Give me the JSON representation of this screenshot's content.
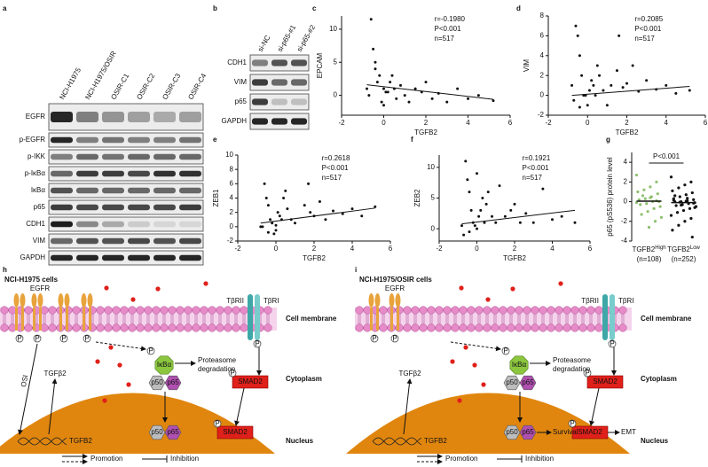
{
  "panels": [
    "a",
    "b",
    "c",
    "d",
    "e",
    "f",
    "g",
    "h",
    "i"
  ],
  "blots": [
    {
      "lanes": [
        "NCI-H1975",
        "NCI-H1975/OSIR",
        "OSIR-C1",
        "OSIR-C2",
        "OSIR-C3",
        "OSIR-C4"
      ],
      "rows": [
        "EGFR",
        "p-EGFR",
        "p-IKK",
        "p-IκBα",
        "IκBα",
        "p65",
        "CDH1",
        "VIM",
        "GAPDH"
      ],
      "intensity": [
        [
          0.9,
          0.5,
          0.4,
          0.35,
          0.3,
          0.35
        ],
        [
          0.9,
          0.5,
          0.55,
          0.5,
          0.5,
          0.55
        ],
        [
          0.5,
          0.6,
          0.55,
          0.6,
          0.6,
          0.6
        ],
        [
          0.6,
          0.8,
          0.8,
          0.75,
          0.85,
          0.85
        ],
        [
          0.7,
          0.6,
          0.6,
          0.6,
          0.6,
          0.6
        ],
        [
          0.8,
          0.75,
          0.75,
          0.75,
          0.75,
          0.8
        ],
        [
          0.95,
          0.45,
          0.3,
          0.15,
          0.1,
          0.1
        ],
        [
          0.6,
          0.7,
          0.7,
          0.75,
          0.7,
          0.75
        ],
        [
          0.9,
          0.9,
          0.9,
          0.9,
          0.9,
          0.9
        ]
      ]
    },
    {
      "lanes": [
        "si-NC",
        "si-p65-#1",
        "si-p65-#2"
      ],
      "rows": [
        "CDH1",
        "VIM",
        "p65",
        "GAPDH"
      ],
      "intensity": [
        [
          0.5,
          0.7,
          0.7
        ],
        [
          0.8,
          0.6,
          0.6
        ],
        [
          0.8,
          0.2,
          0.2
        ],
        [
          0.9,
          0.9,
          0.9
        ]
      ]
    }
  ],
  "chart_data": [
    {
      "type": "scatter",
      "xlabel": "TGFB2",
      "ylabel": "EPCAM",
      "stats": [
        "r=-0.1980",
        "P<0.001",
        "n=517"
      ],
      "xlim": [
        -2,
        6
      ],
      "xticks": [
        -2,
        0,
        2,
        4,
        6
      ],
      "ylim": [
        -3,
        12
      ],
      "yticks": [
        0,
        5,
        10
      ],
      "x": [
        -0.6,
        -0.5,
        -0.4,
        -0.3,
        -0.2,
        0,
        0.1,
        0.3,
        0.5,
        -0.7,
        -0.1,
        0.2,
        0.6,
        0.8,
        1.0,
        1.2,
        1.5,
        1.8,
        2.0,
        2.3,
        2.6,
        3.0,
        3.5,
        4.0,
        4.5,
        5.2,
        -0.4,
        0.0,
        0.4,
        -0.8
      ],
      "y": [
        11.5,
        7,
        4,
        2,
        3,
        1,
        0.5,
        2,
        1,
        0,
        -1,
        0.5,
        -0.5,
        1.5,
        0,
        -1,
        1,
        0.5,
        2,
        -0.5,
        0.3,
        -1,
        1,
        -0.5,
        0,
        -0.8,
        5,
        -1.5,
        3,
        1
      ],
      "fit_x": [
        -0.8,
        5.2
      ],
      "fit_y": [
        1.6,
        -0.6
      ],
      "color": "#111111"
    },
    {
      "type": "scatter",
      "xlabel": "TGFB2",
      "ylabel": "VIM",
      "stats": [
        "r=0.2085",
        "P<0.001",
        "n=517"
      ],
      "xlim": [
        -2,
        6
      ],
      "xticks": [
        -2,
        0,
        2,
        4,
        6
      ],
      "ylim": [
        -2,
        8
      ],
      "yticks": [
        -2,
        0,
        2,
        4,
        6,
        8
      ],
      "x": [
        -0.6,
        -0.5,
        -0.4,
        -0.3,
        -0.2,
        0,
        0.1,
        0.3,
        0.5,
        -0.7,
        -0.1,
        0.2,
        0.6,
        0.8,
        1.0,
        1.2,
        1.5,
        1.8,
        2.0,
        2.3,
        2.6,
        3.0,
        3.5,
        4.0,
        4.5,
        5.2,
        -0.4,
        1.6,
        0.4,
        -0.8
      ],
      "y": [
        7,
        6,
        4,
        2,
        0,
        -1,
        0.5,
        1,
        3,
        -0.5,
        0,
        1.5,
        2,
        0.5,
        -1,
        1,
        2.5,
        0.8,
        1.2,
        3,
        0.4,
        1.5,
        0.6,
        1.0,
        0.2,
        0.5,
        -1.2,
        6,
        0,
        1
      ],
      "fit_x": [
        -0.8,
        5.2
      ],
      "fit_y": [
        0,
        0.9
      ],
      "color": "#111111"
    },
    {
      "type": "scatter",
      "xlabel": "TGFB2",
      "ylabel": "ZEB1",
      "stats": [
        "r=0.2618",
        "P<0.001",
        "n=517"
      ],
      "xlim": [
        -2,
        6
      ],
      "xticks": [
        -2,
        0,
        2,
        4,
        6
      ],
      "ylim": [
        -2,
        10
      ],
      "yticks": [
        -2,
        0,
        2,
        4,
        6,
        8,
        10
      ],
      "x": [
        -0.6,
        -0.5,
        -0.4,
        -0.3,
        -0.2,
        0,
        0.1,
        0.3,
        0.5,
        -0.7,
        -0.1,
        0.2,
        0.6,
        0.8,
        1.0,
        1.7,
        1.5,
        1.8,
        2.0,
        2.3,
        2.6,
        3.0,
        3.5,
        4.0,
        4.5,
        5.2,
        -0.4,
        0.0,
        0.4,
        -0.8
      ],
      "y": [
        6,
        4,
        3,
        1,
        0.5,
        -0.5,
        2,
        1,
        5,
        0,
        -1,
        1.5,
        2.5,
        1,
        0.5,
        6,
        3,
        2,
        1.5,
        3.5,
        1,
        2.2,
        1.8,
        2.5,
        1.5,
        2.8,
        -0.8,
        0.2,
        4,
        0
      ],
      "fit_x": [
        -0.8,
        5.2
      ],
      "fit_y": [
        0.5,
        2.6
      ],
      "color": "#111111"
    },
    {
      "type": "scatter",
      "xlabel": "TGFB2",
      "ylabel": "ZEB2",
      "stats": [
        "r=0.1921",
        "P<0.001",
        "n=517"
      ],
      "xlim": [
        -2,
        6
      ],
      "xticks": [
        -2,
        0,
        2,
        4,
        6
      ],
      "ylim": [
        -2,
        12
      ],
      "yticks": [
        0,
        5,
        10
      ],
      "x": [
        -0.6,
        -0.5,
        -0.4,
        -0.3,
        -0.2,
        0,
        0.1,
        0.3,
        0.5,
        -0.7,
        -0.1,
        0.2,
        0.6,
        0.8,
        1.0,
        1.2,
        1.5,
        1.8,
        2.0,
        2.3,
        2.6,
        3.0,
        3.5,
        4.0,
        4.5,
        5.2,
        -0.4,
        0.0,
        0.4,
        -0.8
      ],
      "y": [
        11,
        8,
        6,
        3,
        1,
        0,
        2,
        5,
        4,
        -1,
        0.5,
        3,
        6,
        2,
        1,
        7,
        2,
        3,
        4,
        1,
        2.5,
        1,
        6.5,
        1.5,
        2,
        1,
        -0.5,
        9,
        1,
        0.5
      ],
      "fit_x": [
        -0.8,
        5.2
      ],
      "fit_y": [
        0.8,
        3.0
      ],
      "color": "#111111"
    },
    {
      "type": "dot",
      "ylabel": "p65 (pS536) protein level",
      "annotation": "P<0.001",
      "categories": [
        "TGFB2",
        "TGFB2"
      ],
      "category_superscripts": [
        "High",
        "Low"
      ],
      "n_labels": [
        "(n=108)",
        "(n=252)"
      ],
      "ylim": [
        -4,
        5
      ],
      "yticks": [
        -4,
        -2,
        0,
        2,
        4
      ],
      "colors": [
        "#8fbf6f",
        "#111111"
      ],
      "values": [
        [
          2.7,
          2.0,
          1.5,
          1.2,
          1.0,
          0.8,
          0.5,
          0.3,
          0.2,
          0,
          0,
          -0.2,
          -0.3,
          -0.5,
          -0.7,
          -1,
          -1.3,
          -1.6,
          -2,
          -2.6,
          0.6,
          -0.1,
          0.1,
          0.4
        ],
        [
          2.5,
          2.0,
          1.7,
          1.4,
          1.1,
          0.9,
          0.7,
          0.5,
          0.3,
          0.2,
          0.1,
          0,
          0,
          -0.1,
          -0.2,
          -0.3,
          -0.4,
          -0.5,
          -0.7,
          -0.9,
          -1.1,
          -1.4,
          -1.7,
          -2,
          -2.4,
          -2.9,
          -3.6,
          0.05,
          -0.05,
          0.15,
          -0.15,
          0.35,
          -0.35,
          0.6,
          -0.6
        ]
      ],
      "means": [
        0.05,
        -0.1
      ]
    }
  ],
  "diagrams": [
    {
      "title": "NCI-H1975 cells",
      "title_color": "#3b3ba6",
      "egfr": "EGFR",
      "tbr2": "TβRII",
      "tbr1": "TβRI",
      "membrane": "Cell membrane",
      "cytoplasm": "Cytoplasm",
      "nucleus": "Nucleus",
      "ikba": "IκBα",
      "p50": "p50",
      "p65": "p65",
      "proteasome": [
        "Proteasome",
        "degradation"
      ],
      "ligand": "TGFβ2",
      "smad2": "SMAD2",
      "gene": "TGFB2",
      "phospho": "P",
      "drug": "OSI"
    },
    {
      "title": "NCI-H1975/OSIR cells",
      "title_color": "#e0201b",
      "egfr": "EGFR",
      "tbr2": "TβRII",
      "tbr1": "TβRI",
      "membrane": "Cell membrane",
      "cytoplasm": "Cytoplasm",
      "nucleus": "Nucleus",
      "ikba": "IκBα",
      "p50": "p50",
      "p65": "p65",
      "proteasome": [
        "Proteasome",
        "degradation"
      ],
      "ligand": "TGFβ2",
      "smad2": "SMAD2",
      "gene": "TGFB2",
      "phospho": "P",
      "outputs": [
        "Survival",
        "EMT"
      ]
    }
  ],
  "legend": [
    "Promotion",
    "Inhibition"
  ]
}
